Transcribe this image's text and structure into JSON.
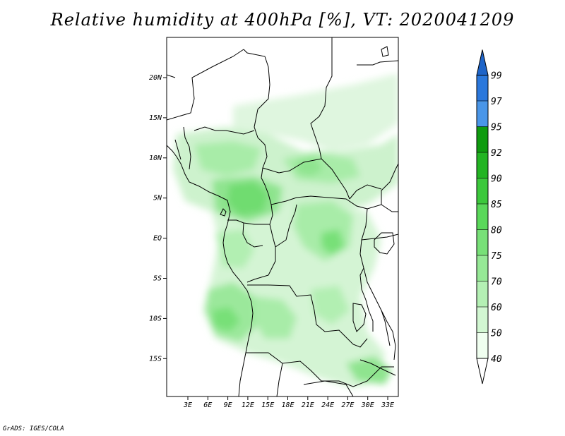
{
  "title": "Relative humidity at 400hPa [%], VT: 2020041209",
  "credit": "GrADS: IGES/COLA",
  "map": {
    "lat_labels": [
      "20N",
      "15N",
      "10N",
      "5N",
      "EQ",
      "5S",
      "10S",
      "15S"
    ],
    "lon_labels": [
      "3E",
      "6E",
      "9E",
      "12E",
      "15E",
      "18E",
      "21E",
      "24E",
      "27E",
      "30E",
      "33E"
    ]
  },
  "colorbar": {
    "levels": [
      "40",
      "50",
      "60",
      "70",
      "75",
      "80",
      "85",
      "90",
      "92",
      "95",
      "97",
      "99"
    ],
    "colors": [
      "#f0fff0",
      "#d2f7d2",
      "#b4f0b4",
      "#96e896",
      "#78e078",
      "#5ad85a",
      "#3cc83c",
      "#23b423",
      "#0f9b0f",
      "#4a96e8",
      "#2b78dc",
      "#1457c8"
    ],
    "max_arrow_color": "#1e64c8",
    "min_arrow_color": "#ffffff"
  }
}
